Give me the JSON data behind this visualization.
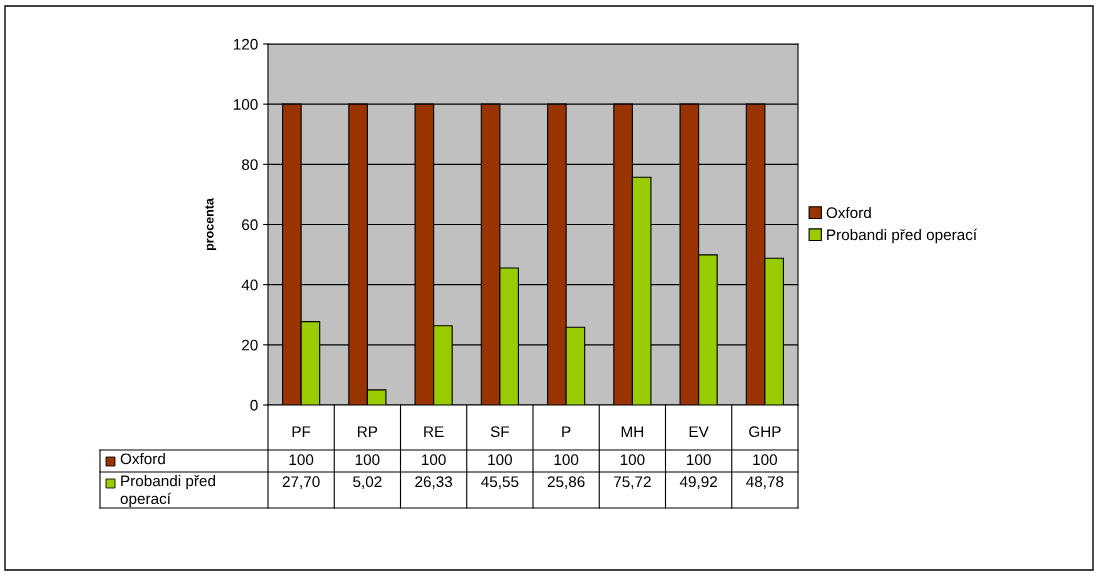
{
  "chart_data": {
    "type": "bar",
    "ylabel": "procenta",
    "categories": [
      "PF",
      "RP",
      "RE",
      "SF",
      "P",
      "MH",
      "EV",
      "GHP"
    ],
    "series": [
      {
        "name": "Oxford",
        "color": "#993300",
        "values": [
          100,
          100,
          100,
          100,
          100,
          100,
          100,
          100
        ],
        "value_labels": [
          "100",
          "100",
          "100",
          "100",
          "100",
          "100",
          "100",
          "100"
        ]
      },
      {
        "name": "Probandi před operací",
        "color": "#99cc00",
        "values": [
          27.7,
          5.02,
          26.33,
          45.55,
          25.86,
          75.72,
          49.92,
          48.78
        ],
        "value_labels": [
          "27,70",
          "5,02",
          "26,33",
          "45,55",
          "25,86",
          "75,72",
          "49,92",
          "48,78"
        ]
      }
    ],
    "ylim": [
      0,
      120
    ],
    "yticks": [
      0,
      20,
      40,
      60,
      80,
      100,
      120
    ],
    "grid": "y",
    "legend": "right"
  }
}
